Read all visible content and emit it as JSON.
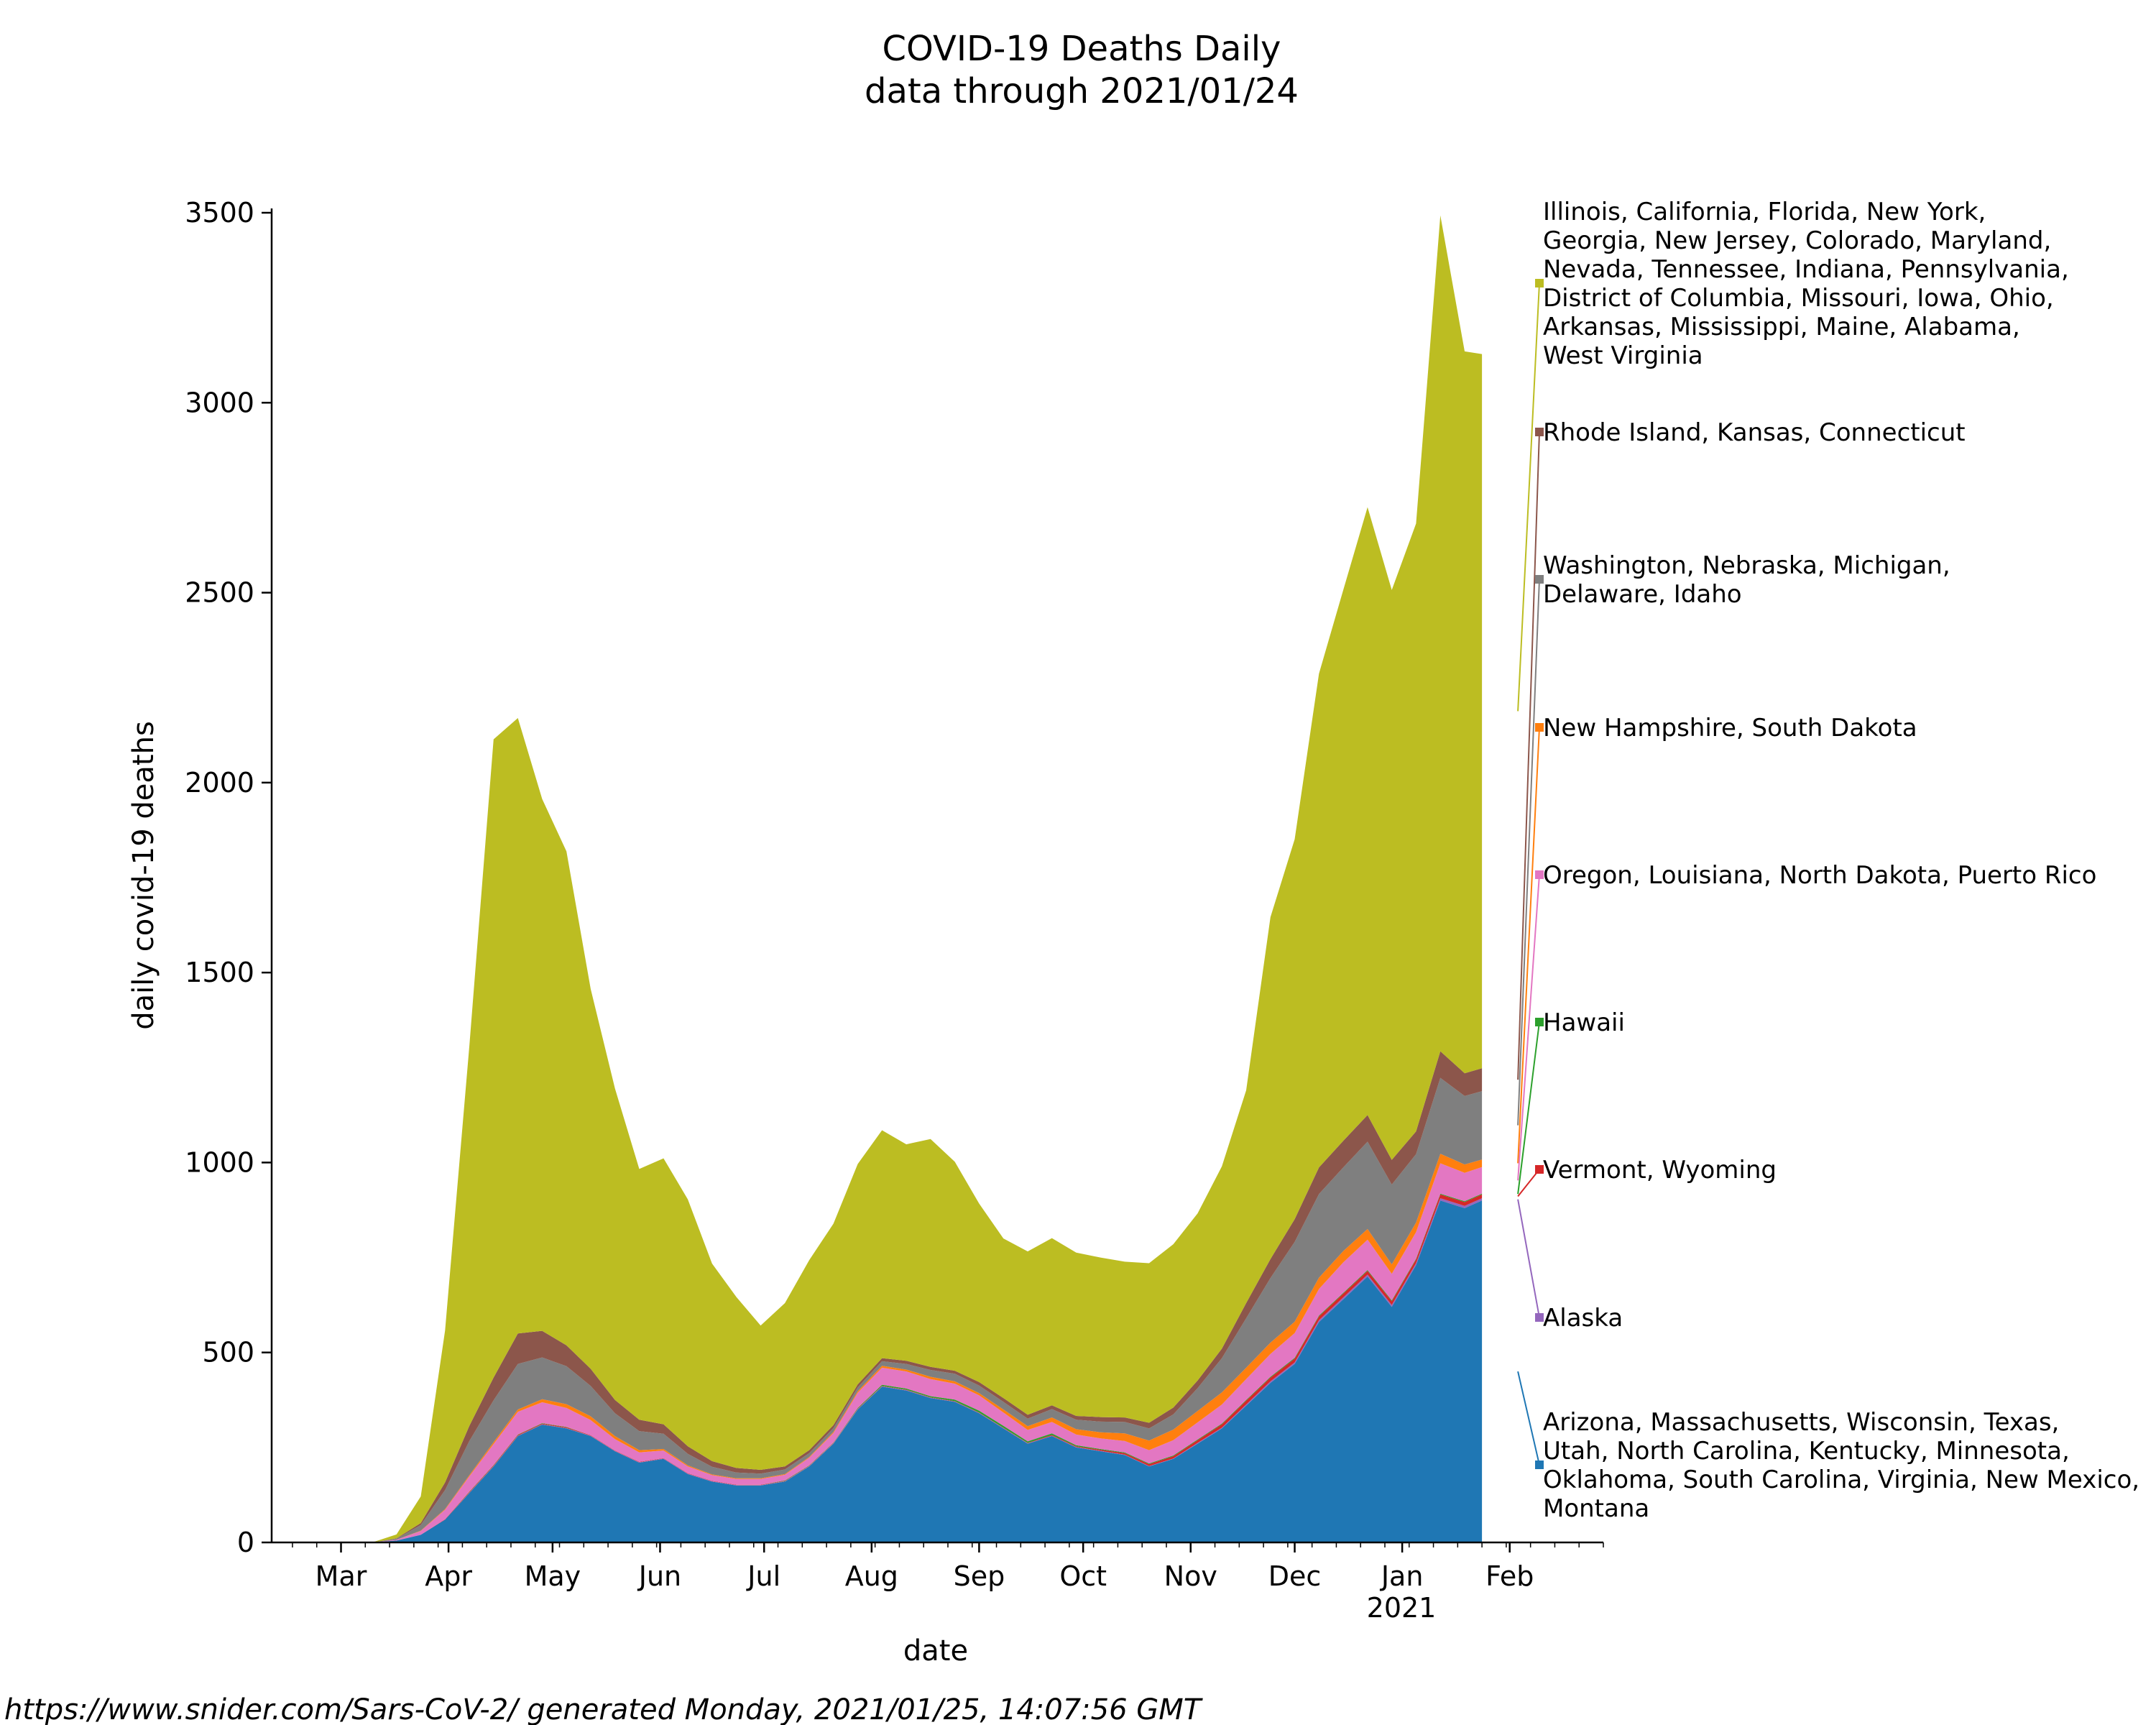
{
  "chart_data": {
    "type": "area",
    "title": "COVID-19 Deaths Daily",
    "subtitle": "data through 2021/01/24",
    "xlabel": "date",
    "ylabel": "daily covid-19 deaths",
    "ylim": [
      0,
      3500
    ],
    "yticks": [
      0,
      500,
      1000,
      1500,
      2000,
      2500,
      3000,
      3500
    ],
    "xticks": [
      {
        "label": "Mar",
        "date": "2020-03-01"
      },
      {
        "label": "Apr",
        "date": "2020-04-01"
      },
      {
        "label": "May",
        "date": "2020-05-01"
      },
      {
        "label": "Jun",
        "date": "2020-06-01"
      },
      {
        "label": "Jul",
        "date": "2020-07-01"
      },
      {
        "label": "Aug",
        "date": "2020-08-01"
      },
      {
        "label": "Sep",
        "date": "2020-09-01"
      },
      {
        "label": "Oct",
        "date": "2020-10-01"
      },
      {
        "label": "Nov",
        "date": "2020-11-01"
      },
      {
        "label": "Dec",
        "date": "2020-12-01"
      },
      {
        "label": "Jan",
        "date": "2021-01-01"
      },
      {
        "label": "Feb",
        "date": "2021-02-01"
      }
    ],
    "year_label": "2021",
    "x_range": [
      "2020-02-10",
      "2021-02-28"
    ],
    "grid": false,
    "legend_placement": "right",
    "x": [
      "2020-03-10",
      "2020-03-17",
      "2020-03-24",
      "2020-03-31",
      "2020-04-07",
      "2020-04-14",
      "2020-04-21",
      "2020-04-28",
      "2020-05-05",
      "2020-05-12",
      "2020-05-19",
      "2020-05-26",
      "2020-06-02",
      "2020-06-09",
      "2020-06-16",
      "2020-06-23",
      "2020-06-30",
      "2020-07-07",
      "2020-07-14",
      "2020-07-21",
      "2020-07-28",
      "2020-08-04",
      "2020-08-11",
      "2020-08-18",
      "2020-08-25",
      "2020-09-01",
      "2020-09-08",
      "2020-09-15",
      "2020-09-22",
      "2020-09-29",
      "2020-10-06",
      "2020-10-13",
      "2020-10-20",
      "2020-10-27",
      "2020-11-03",
      "2020-11-10",
      "2020-11-17",
      "2020-11-24",
      "2020-12-01",
      "2020-12-08",
      "2020-12-15",
      "2020-12-22",
      "2020-12-29",
      "2021-01-05",
      "2021-01-12",
      "2021-01-19",
      "2021-01-24"
    ],
    "series": [
      {
        "name": "Arizona, Massachusetts, Wisconsin, Texas, Utah, North Carolina, Kentucky, Minnesota, Oklahoma, South Carolina, Virginia, New Mexico, Montana",
        "color": "#1f77b4",
        "values": [
          0,
          5,
          20,
          60,
          130,
          200,
          280,
          310,
          300,
          280,
          240,
          210,
          220,
          180,
          160,
          150,
          150,
          160,
          200,
          260,
          350,
          410,
          400,
          380,
          370,
          340,
          300,
          260,
          280,
          250,
          240,
          230,
          200,
          220,
          260,
          300,
          360,
          420,
          470,
          580,
          640,
          700,
          620,
          730,
          900,
          880,
          900
        ]
      },
      {
        "name": "Alaska",
        "color": "#9467bd",
        "values": [
          0,
          0,
          0,
          0,
          1,
          1,
          1,
          1,
          1,
          1,
          1,
          1,
          1,
          1,
          1,
          1,
          1,
          1,
          1,
          1,
          1,
          1,
          1,
          1,
          1,
          1,
          1,
          1,
          1,
          1,
          1,
          1,
          1,
          1,
          2,
          2,
          3,
          4,
          4,
          5,
          5,
          5,
          5,
          5,
          6,
          6,
          6
        ]
      },
      {
        "name": "Vermont, Wyoming",
        "color": "#d62728",
        "values": [
          0,
          0,
          0,
          1,
          2,
          2,
          2,
          2,
          2,
          1,
          1,
          1,
          1,
          1,
          1,
          1,
          1,
          1,
          1,
          1,
          1,
          1,
          1,
          1,
          1,
          1,
          1,
          1,
          2,
          2,
          3,
          4,
          5,
          6,
          7,
          9,
          10,
          10,
          10,
          10,
          10,
          10,
          10,
          10,
          10,
          10,
          10
        ]
      },
      {
        "name": "Hawaii",
        "color": "#2ca02c",
        "values": [
          0,
          0,
          0,
          0,
          1,
          1,
          1,
          1,
          1,
          0,
          0,
          0,
          0,
          0,
          0,
          0,
          0,
          1,
          1,
          1,
          2,
          3,
          3,
          3,
          4,
          5,
          5,
          4,
          4,
          3,
          2,
          2,
          2,
          2,
          2,
          2,
          2,
          2,
          2,
          2,
          2,
          2,
          2,
          2,
          2,
          2,
          2
        ]
      },
      {
        "name": "Oregon, Louisiana, North Dakota, Puerto Rico",
        "color": "#e377c2",
        "values": [
          0,
          2,
          10,
          25,
          40,
          55,
          60,
          55,
          50,
          40,
          30,
          25,
          20,
          18,
          15,
          15,
          15,
          15,
          20,
          25,
          40,
          45,
          45,
          45,
          42,
          40,
          35,
          30,
          30,
          28,
          28,
          30,
          35,
          40,
          45,
          50,
          55,
          60,
          65,
          70,
          80,
          80,
          70,
          70,
          80,
          75,
          70
        ]
      },
      {
        "name": "New Hampshire, South Dakota",
        "color": "#ff7f0e",
        "values": [
          0,
          0,
          1,
          2,
          3,
          5,
          6,
          8,
          10,
          10,
          8,
          6,
          4,
          3,
          2,
          2,
          2,
          2,
          2,
          3,
          4,
          5,
          5,
          6,
          6,
          6,
          8,
          10,
          12,
          14,
          16,
          20,
          25,
          28,
          30,
          32,
          30,
          30,
          30,
          30,
          30,
          28,
          25,
          25,
          25,
          22,
          20
        ]
      },
      {
        "name": "Washington, Nebraska, Michigan, Delaware, Idaho",
        "color": "#7f7f7f",
        "values": [
          0,
          3,
          15,
          50,
          90,
          110,
          120,
          110,
          100,
          80,
          60,
          50,
          40,
          30,
          20,
          15,
          12,
          12,
          10,
          10,
          10,
          12,
          15,
          18,
          20,
          20,
          20,
          20,
          22,
          25,
          28,
          30,
          32,
          40,
          60,
          90,
          130,
          170,
          210,
          220,
          220,
          230,
          210,
          180,
          200,
          180,
          180
        ]
      },
      {
        "name": "Rhode Island, Kansas, Connecticut",
        "color": "#8c564b",
        "values": [
          0,
          1,
          5,
          20,
          40,
          60,
          80,
          70,
          55,
          45,
          35,
          30,
          25,
          20,
          15,
          12,
          10,
          8,
          8,
          8,
          8,
          8,
          8,
          8,
          8,
          9,
          10,
          10,
          10,
          10,
          12,
          12,
          15,
          18,
          20,
          25,
          40,
          50,
          60,
          70,
          70,
          70,
          65,
          60,
          70,
          60,
          60
        ]
      },
      {
        "name": "Illinois, California, Florida, New York, Georgia, New Jersey, Colorado, Maryland, Nevada, Tennessee, Indiana, Pennsylvania, District of Columbia, Missouri, Iowa, Ohio, Arkansas, Mississippi, Maine, Alabama, West Virginia",
        "color": "#bcbd22",
        "values": [
          0,
          10,
          70,
          400,
          1000,
          1680,
          1620,
          1400,
          1300,
          1000,
          820,
          660,
          700,
          650,
          520,
          450,
          380,
          430,
          500,
          530,
          580,
          600,
          570,
          600,
          550,
          470,
          420,
          430,
          440,
          430,
          420,
          410,
          420,
          430,
          440,
          480,
          560,
          900,
          1000,
          1300,
          1450,
          1600,
          1500,
          1600,
          2200,
          1900,
          1880
        ]
      }
    ],
    "legend": [
      {
        "text": [
          "Illinois, California, Florida, New York,",
          "Georgia, New Jersey, Colorado, Maryland,",
          "Nevada, Tennessee, Indiana, Pennsylvania,",
          "District of Columbia, Missouri, Iowa, Ohio,",
          "Arkansas, Mississippi, Maine, Alabama,",
          "West Virginia"
        ],
        "color": "#bcbd22"
      },
      {
        "text": [
          "Rhode Island, Kansas, Connecticut"
        ],
        "color": "#8c564b"
      },
      {
        "text": [
          "Washington, Nebraska, Michigan,",
          "Delaware, Idaho"
        ],
        "color": "#7f7f7f"
      },
      {
        "text": [
          "New Hampshire, South Dakota"
        ],
        "color": "#ff7f0e"
      },
      {
        "text": [
          "Oregon, Louisiana, North Dakota, Puerto Rico"
        ],
        "color": "#e377c2"
      },
      {
        "text": [
          "Hawaii"
        ],
        "color": "#2ca02c"
      },
      {
        "text": [
          "Vermont, Wyoming"
        ],
        "color": "#d62728"
      },
      {
        "text": [
          "Alaska"
        ],
        "color": "#9467bd"
      },
      {
        "text": [
          "Arizona, Massachusetts, Wisconsin, Texas,",
          "Utah, North Carolina, Kentucky, Minnesota,",
          "Oklahoma, South Carolina, Virginia, New Mexico,",
          "Montana"
        ],
        "color": "#1f77b4"
      }
    ]
  },
  "footer": "https://www.snider.com/Sars-CoV-2/ generated Monday, 2021/01/25, 14:07:56 GMT"
}
